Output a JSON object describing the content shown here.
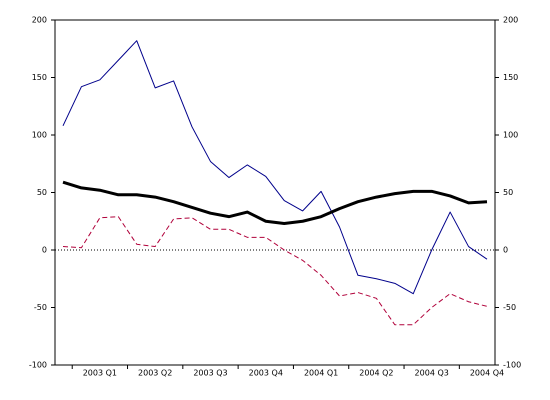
{
  "chart_data": {
    "type": "line",
    "categories": [
      null,
      null,
      "2003 Q1",
      null,
      null,
      "2003 Q2",
      null,
      null,
      "2003 Q3",
      null,
      null,
      "2003 Q4",
      null,
      null,
      "2004 Q1",
      null,
      null,
      "2004 Q2",
      null,
      null,
      "2004 Q3",
      null,
      null,
      "2004 Q4"
    ],
    "series": [
      {
        "color": "#00008b",
        "style": "solid",
        "width": 1,
        "values": [
          108,
          142,
          148,
          165,
          182,
          141,
          147,
          107,
          77,
          63,
          74,
          64,
          43,
          34,
          51,
          20,
          -22,
          -25,
          -29,
          -38,
          0,
          33,
          3,
          -8
        ]
      },
      {
        "color": "#000000",
        "style": "solid",
        "width": 3,
        "values": [
          59,
          54,
          52,
          48,
          48,
          46,
          42,
          37,
          32,
          29,
          33,
          25,
          23,
          25,
          29,
          36,
          42,
          46,
          49,
          51,
          51,
          47,
          41,
          42
        ]
      },
      {
        "color": "#b0003a",
        "style": "dashed",
        "width": 1,
        "values": [
          3,
          2,
          28,
          29,
          5,
          3,
          27,
          28,
          18,
          18,
          11,
          11,
          0,
          -9,
          -22,
          -40,
          -37,
          -42,
          -65,
          -65,
          -50,
          -38,
          -45,
          -49
        ]
      }
    ],
    "ylim": [
      -100,
      200
    ],
    "yticks": [
      -100,
      -50,
      0,
      50,
      100,
      150,
      200
    ],
    "y2lim": [
      -100,
      200
    ],
    "y2ticks": [
      -100,
      -50,
      0,
      50,
      100,
      150,
      200
    ]
  }
}
